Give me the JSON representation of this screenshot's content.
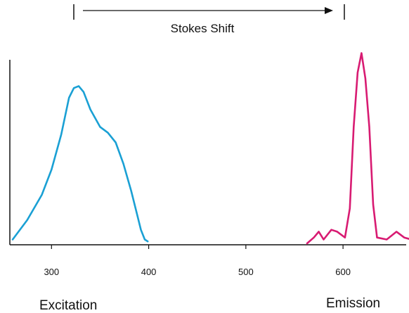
{
  "chart_data": {
    "type": "line",
    "title": "",
    "xlabel": "",
    "ylabel": "",
    "x_ticks": [
      300,
      400,
      500,
      600
    ],
    "xlim": [
      260,
      665
    ],
    "ylim": [
      0,
      1
    ],
    "grid": false,
    "annotations": {
      "stokes_shift": "Stokes Shift",
      "excitation": "Excitation",
      "emission": "Emission"
    },
    "stokes_shift_range": [
      325,
      617
    ],
    "series": [
      {
        "color": "#1aa0d4",
        "points": [
          [
            260,
            0.02
          ],
          [
            275,
            0.12
          ],
          [
            290,
            0.25
          ],
          [
            300,
            0.38
          ],
          [
            310,
            0.56
          ],
          [
            318,
            0.75
          ],
          [
            323,
            0.8
          ],
          [
            328,
            0.81
          ],
          [
            333,
            0.78
          ],
          [
            340,
            0.69
          ],
          [
            350,
            0.6
          ],
          [
            358,
            0.57
          ],
          [
            366,
            0.52
          ],
          [
            374,
            0.41
          ],
          [
            382,
            0.27
          ],
          [
            388,
            0.15
          ],
          [
            392,
            0.07
          ],
          [
            396,
            0.02
          ],
          [
            399,
            0.01
          ]
        ]
      },
      {
        "color": "#d81b72",
        "points": [
          [
            563,
            0.0
          ],
          [
            570,
            0.03
          ],
          [
            575,
            0.06
          ],
          [
            580,
            0.02
          ],
          [
            588,
            0.07
          ],
          [
            594,
            0.06
          ],
          [
            602,
            0.03
          ],
          [
            607,
            0.18
          ],
          [
            611,
            0.6
          ],
          [
            615,
            0.88
          ],
          [
            619,
            0.98
          ],
          [
            623,
            0.85
          ],
          [
            627,
            0.6
          ],
          [
            631,
            0.2
          ],
          [
            635,
            0.03
          ],
          [
            645,
            0.02
          ],
          [
            655,
            0.06
          ],
          [
            663,
            0.03
          ],
          [
            670,
            0.02
          ],
          [
            680,
            0.02
          ]
        ]
      }
    ]
  }
}
